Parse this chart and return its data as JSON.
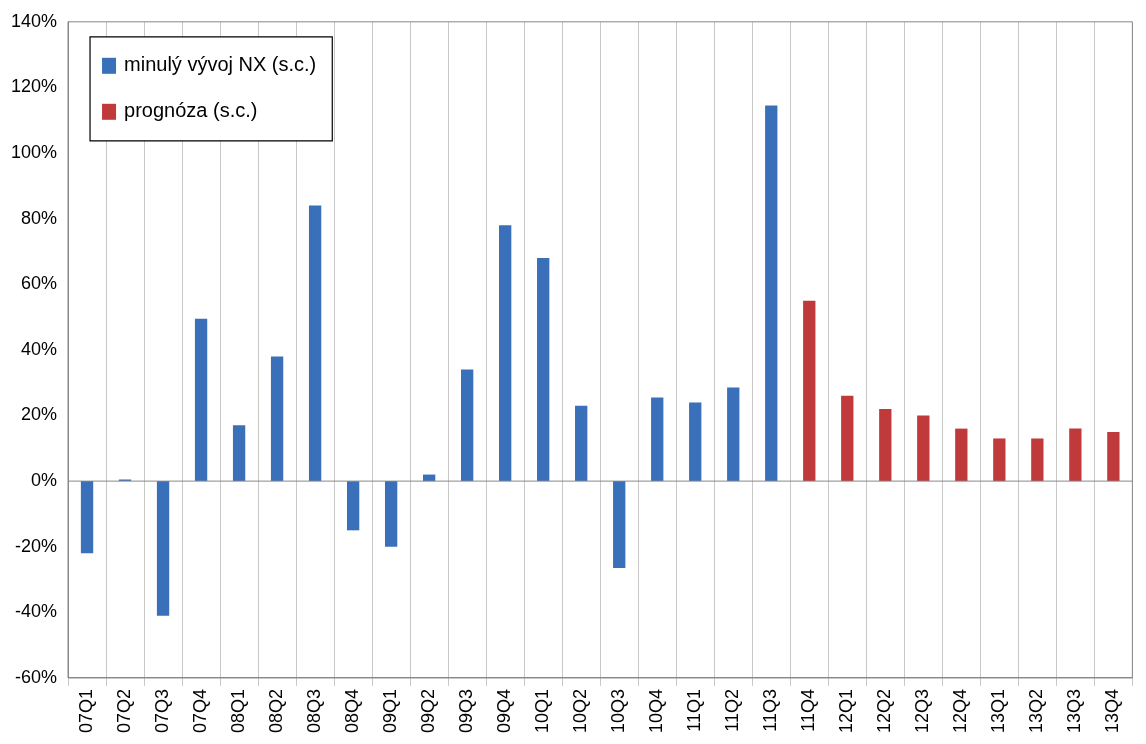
{
  "chart_data": {
    "type": "bar",
    "categories": [
      "07Q1",
      "07Q2",
      "07Q3",
      "07Q4",
      "08Q1",
      "08Q2",
      "08Q3",
      "08Q4",
      "09Q1",
      "09Q2",
      "09Q3",
      "09Q4",
      "10Q1",
      "10Q2",
      "10Q3",
      "10Q4",
      "11Q1",
      "11Q2",
      "11Q3",
      "11Q4",
      "12Q1",
      "12Q2",
      "12Q3",
      "12Q4",
      "13Q1",
      "13Q2",
      "13Q3",
      "13Q4"
    ],
    "series": [
      {
        "name": "minulý vývoj NX (s.c.)",
        "color": "#3a6fba",
        "values": [
          -22,
          0.5,
          -41,
          49.5,
          17,
          38,
          84,
          -15,
          -20,
          2,
          34,
          78,
          68,
          23,
          -26.5,
          25.5,
          24,
          28.5,
          114.5,
          null,
          null,
          null,
          null,
          null,
          null,
          null,
          null,
          null
        ]
      },
      {
        "name": "prognóza (s.c.)",
        "color": "#c0393b",
        "values": [
          null,
          null,
          null,
          null,
          null,
          null,
          null,
          null,
          null,
          null,
          null,
          null,
          null,
          null,
          null,
          null,
          null,
          null,
          null,
          55,
          26,
          22,
          20,
          16,
          13,
          13,
          16,
          15
        ]
      }
    ],
    "ylim": [
      -60,
      140
    ],
    "yticks": [
      {
        "value": -60,
        "label": "-60%"
      },
      {
        "value": -40,
        "label": "-40%"
      },
      {
        "value": -20,
        "label": "-20%"
      },
      {
        "value": 0,
        "label": "0%"
      },
      {
        "value": 20,
        "label": "20%"
      },
      {
        "value": 40,
        "label": "40%"
      },
      {
        "value": 60,
        "label": "60%"
      },
      {
        "value": 80,
        "label": "80%"
      },
      {
        "value": 100,
        "label": "100%"
      },
      {
        "value": 120,
        "label": "120%"
      },
      {
        "value": 140,
        "label": "140%"
      }
    ],
    "grid": "x",
    "legend": "top left"
  }
}
